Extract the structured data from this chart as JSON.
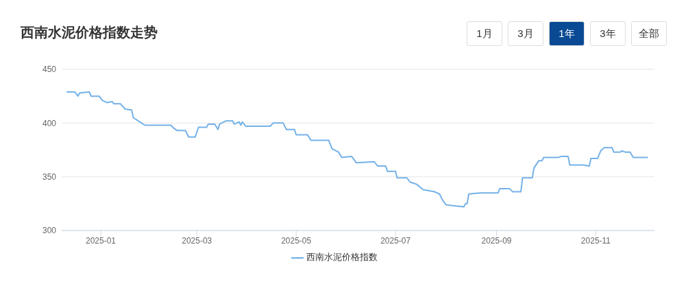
{
  "chart_data": {
    "type": "line",
    "title": "西南水泥价格指数走势",
    "annotations": [
      "1月",
      "3月",
      "1年",
      "3年",
      "全部"
    ],
    "x": [
      "2024-12-11",
      "2024-12-16",
      "2024-12-18",
      "2024-12-19",
      "2024-12-25",
      "2024-12-26",
      "2024-12-31",
      "2025-01-02",
      "2025-01-05",
      "2025-01-08",
      "2025-01-09",
      "2025-01-13",
      "2025-01-16",
      "2025-01-20",
      "2025-01-21",
      "2025-01-26",
      "2025-01-28",
      "2025-02-13",
      "2025-02-15",
      "2025-02-17",
      "2025-02-22",
      "2025-02-24",
      "2025-02-28",
      "2025-03-02",
      "2025-03-07",
      "2025-03-08",
      "2025-03-12",
      "2025-03-14",
      "2025-03-15",
      "2025-03-19",
      "2025-03-23",
      "2025-03-24",
      "2025-03-27",
      "2025-03-28",
      "2025-03-29",
      "2025-03-31",
      "2025-04-04",
      "2025-04-15",
      "2025-04-17",
      "2025-04-23",
      "2025-04-25",
      "2025-04-30",
      "2025-05-01",
      "2025-05-08",
      "2025-05-10",
      "2025-05-21",
      "2025-05-23",
      "2025-05-27",
      "2025-05-29",
      "2025-06-04",
      "2025-06-07",
      "2025-06-18",
      "2025-06-20",
      "2025-06-25",
      "2025-06-26",
      "2025-07-01",
      "2025-07-02",
      "2025-07-08",
      "2025-07-10",
      "2025-07-14",
      "2025-07-18",
      "2025-07-25",
      "2025-07-28",
      "2025-07-30",
      "2025-08-01",
      "2025-08-06",
      "2025-08-12",
      "2025-08-13",
      "2025-08-14",
      "2025-08-15",
      "2025-08-22",
      "2025-09-02",
      "2025-09-03",
      "2025-09-09",
      "2025-09-11",
      "2025-09-16",
      "2025-09-17",
      "2025-09-23",
      "2025-09-24",
      "2025-09-27",
      "2025-09-29",
      "2025-09-30",
      "2025-10-09",
      "2025-10-11",
      "2025-10-15",
      "2025-10-16",
      "2025-10-24",
      "2025-10-28",
      "2025-10-29",
      "2025-11-02",
      "2025-11-04",
      "2025-11-06",
      "2025-11-11",
      "2025-11-12",
      "2025-11-16",
      "2025-11-17",
      "2025-11-19",
      "2025-11-22",
      "2025-11-24",
      "2025-12-03"
    ],
    "series": [
      {
        "name": "西南水泥价格指数",
        "color": "#74b1e8",
        "values": [
          429,
          429,
          425,
          428,
          429,
          425,
          425,
          421,
          419,
          420,
          418,
          418,
          413,
          412,
          405,
          400,
          398,
          398,
          395,
          393,
          393,
          387,
          387,
          396,
          396,
          399,
          399,
          394,
          399,
          402,
          402,
          399,
          401,
          398,
          401,
          397,
          397,
          397,
          400,
          400,
          394,
          394,
          389,
          389,
          384,
          384,
          376,
          373,
          368,
          369,
          363,
          364,
          360,
          360,
          355,
          355,
          349,
          349,
          345,
          343,
          338,
          336,
          334,
          328,
          324,
          323,
          322,
          325,
          325,
          334,
          335,
          335,
          339,
          339,
          336,
          336,
          349,
          349,
          358,
          365,
          365,
          368,
          368,
          369,
          369,
          361,
          361,
          360,
          367,
          367,
          374,
          377,
          377,
          373,
          373,
          374,
          373,
          373,
          368,
          368
        ]
      }
    ],
    "xlim": [
      "2024-12-08",
      "2025-12-07"
    ],
    "xticks": [
      "2025-01",
      "2025-03",
      "2025-05",
      "2025-07",
      "2025-09",
      "2025-11"
    ],
    "ylim": [
      300,
      450
    ],
    "yticks": [
      300,
      350,
      400,
      450
    ],
    "grid": "y",
    "legend": "bottom",
    "marker": "none",
    "line_style": "solid"
  }
}
